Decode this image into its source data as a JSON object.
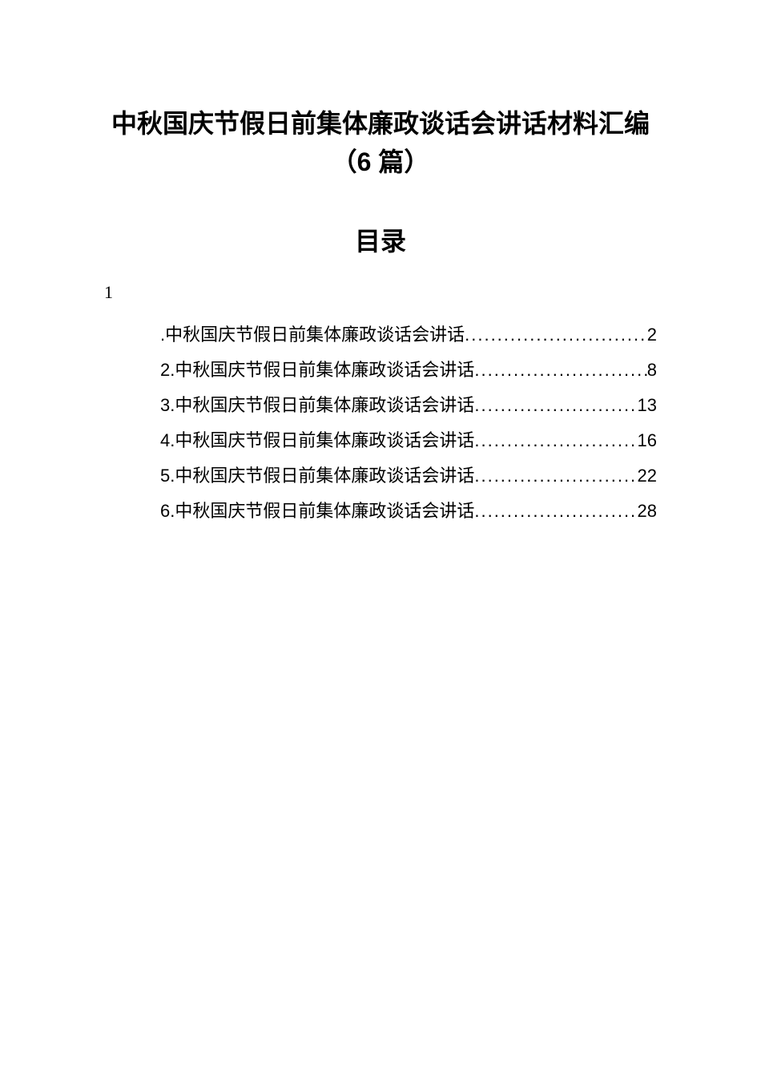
{
  "title": "中秋国庆节假日前集体廉政谈话会讲话材料汇编（6 篇）",
  "toc_heading": "目录",
  "hanging_one": "1",
  "toc_entries": [
    {
      "label": ".中秋国庆节假日前集体廉政谈话会讲话",
      "page": "2"
    },
    {
      "label": "2.中秋国庆节假日前集体廉政谈话会讲话",
      "page": "8"
    },
    {
      "label": "3.中秋国庆节假日前集体廉政谈话会讲话",
      "page": "13"
    },
    {
      "label": "4.中秋国庆节假日前集体廉政谈话会讲话",
      "page": "16"
    },
    {
      "label": "5.中秋国庆节假日前集体廉政谈话会讲话",
      "page": "22"
    },
    {
      "label": "6.中秋国庆节假日前集体廉政谈话会讲话",
      "page": "28"
    }
  ]
}
